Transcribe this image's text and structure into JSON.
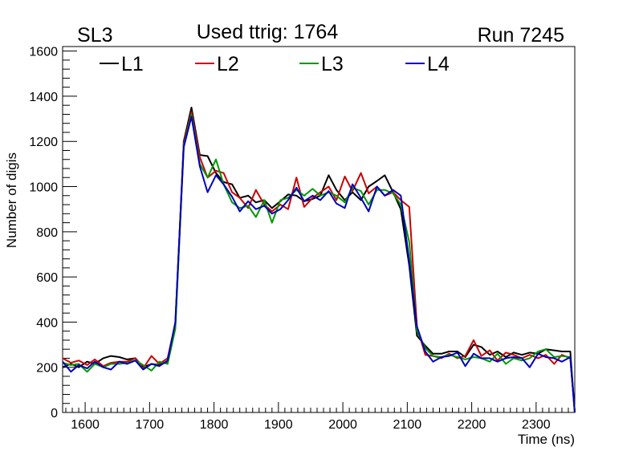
{
  "chart_data": {
    "type": "line",
    "title": "Used ttrig: 1764",
    "subtitle_left": "SL3",
    "subtitle_right": "Run 7245",
    "xlabel": "Time (ns)",
    "ylabel": "Number of digis",
    "xlim": [
      1565,
      2360
    ],
    "ylim": [
      0,
      1620
    ],
    "xticks": [
      1600,
      1700,
      1800,
      1900,
      2000,
      2100,
      2200,
      2300
    ],
    "yticks": [
      0,
      200,
      400,
      600,
      800,
      1000,
      1200,
      1400,
      1600
    ],
    "legend_position": "top",
    "x": [
      1565,
      1578,
      1590,
      1603,
      1615,
      1628,
      1640,
      1653,
      1665,
      1678,
      1690,
      1703,
      1715,
      1728,
      1740,
      1753,
      1765,
      1778,
      1790,
      1803,
      1815,
      1828,
      1840,
      1853,
      1865,
      1878,
      1890,
      1903,
      1915,
      1928,
      1940,
      1953,
      1965,
      1978,
      1990,
      2003,
      2015,
      2028,
      2040,
      2053,
      2065,
      2078,
      2090,
      2103,
      2115,
      2128,
      2140,
      2153,
      2165,
      2178,
      2190,
      2203,
      2215,
      2228,
      2240,
      2253,
      2265,
      2278,
      2290,
      2303,
      2315,
      2328,
      2340,
      2353,
      2360
    ],
    "series": [
      {
        "name": "L1",
        "color": "#000000",
        "values": [
          200,
          215,
          200,
          225,
          215,
          240,
          250,
          245,
          235,
          240,
          200,
          215,
          210,
          225,
          380,
          1200,
          1350,
          1140,
          1135,
          1060,
          1020,
          1010,
          950,
          960,
          930,
          940,
          905,
          935,
          965,
          960,
          935,
          945,
          960,
          1050,
          985,
          940,
          975,
          940,
          1000,
          1025,
          1050,
          975,
          900,
          650,
          340,
          295,
          260,
          260,
          270,
          270,
          245,
          300,
          290,
          255,
          270,
          245,
          265,
          255,
          265,
          260,
          280,
          275,
          270,
          270,
          0
        ]
      },
      {
        "name": "L2",
        "color": "#cc0000",
        "values": [
          240,
          220,
          230,
          210,
          235,
          205,
          220,
          225,
          225,
          240,
          195,
          250,
          215,
          240,
          395,
          1190,
          1330,
          1130,
          1040,
          1070,
          1060,
          975,
          950,
          905,
          985,
          920,
          890,
          920,
          900,
          1040,
          910,
          950,
          975,
          1000,
          940,
          1045,
          980,
          1060,
          970,
          1000,
          960,
          975,
          940,
          910,
          380,
          255,
          250,
          240,
          260,
          240,
          250,
          320,
          250,
          275,
          230,
          265,
          255,
          240,
          255,
          240,
          255,
          215,
          255,
          240,
          0
        ]
      },
      {
        "name": "L3",
        "color": "#009900",
        "values": [
          220,
          210,
          215,
          180,
          215,
          200,
          215,
          215,
          220,
          230,
          210,
          185,
          225,
          215,
          370,
          1180,
          1320,
          1100,
          1040,
          1120,
          1010,
          930,
          905,
          915,
          865,
          940,
          840,
          940,
          950,
          985,
          960,
          990,
          960,
          975,
          960,
          930,
          995,
          980,
          920,
          985,
          985,
          970,
          920,
          755,
          360,
          285,
          250,
          245,
          255,
          245,
          235,
          245,
          240,
          225,
          260,
          215,
          240,
          230,
          240,
          270,
          280,
          245,
          250,
          245,
          0
        ]
      },
      {
        "name": "L4",
        "color": "#0000bb",
        "values": [
          225,
          180,
          210,
          195,
          225,
          200,
          190,
          225,
          215,
          230,
          190,
          215,
          205,
          230,
          400,
          1175,
          1310,
          1090,
          975,
          1050,
          1010,
          955,
          890,
          935,
          900,
          915,
          880,
          900,
          940,
          995,
          935,
          960,
          940,
          980,
          925,
          905,
          1010,
          950,
          890,
          1000,
          960,
          985,
          960,
          670,
          380,
          270,
          225,
          245,
          250,
          265,
          205,
          260,
          240,
          240,
          225,
          240,
          245,
          240,
          200,
          260,
          245,
          240,
          225,
          245,
          0
        ]
      }
    ]
  }
}
